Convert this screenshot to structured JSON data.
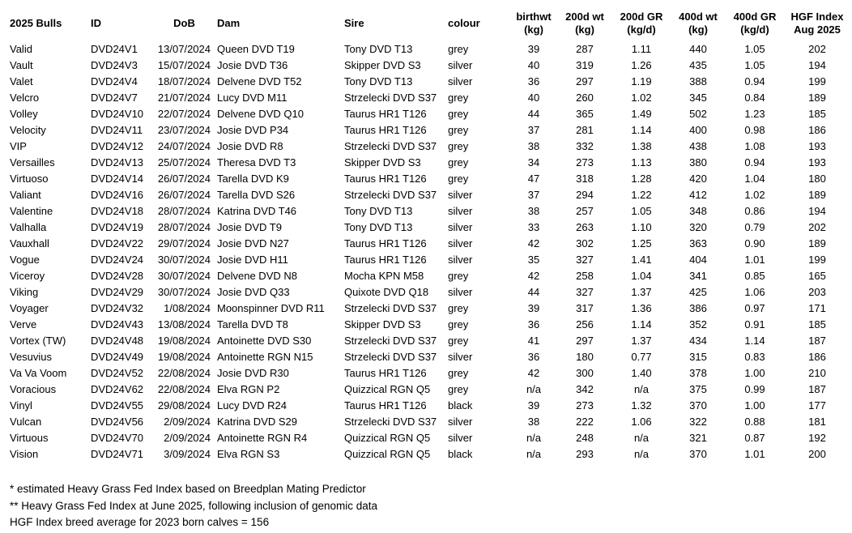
{
  "table": {
    "columns": [
      {
        "key": "name",
        "label": "2025 Bulls",
        "sub": ""
      },
      {
        "key": "id",
        "label": "ID",
        "sub": ""
      },
      {
        "key": "dob",
        "label": "DoB",
        "sub": ""
      },
      {
        "key": "dam",
        "label": "Dam",
        "sub": ""
      },
      {
        "key": "sire",
        "label": "Sire",
        "sub": ""
      },
      {
        "key": "colour",
        "label": "colour",
        "sub": ""
      },
      {
        "key": "birthwt",
        "label": "birthwt",
        "sub": "(kg)"
      },
      {
        "key": "wt200",
        "label": "200d wt",
        "sub": "(kg)"
      },
      {
        "key": "gr200",
        "label": "200d GR",
        "sub": "(kg/d)"
      },
      {
        "key": "wt400",
        "label": "400d wt",
        "sub": "(kg)"
      },
      {
        "key": "gr400",
        "label": "400d GR",
        "sub": "(kg/d)"
      },
      {
        "key": "hgf",
        "label": "HGF Index",
        "sub": "Aug 2025"
      }
    ],
    "rows": [
      [
        "Valid",
        "DVD24V1",
        "13/07/2024",
        "Queen DVD T19",
        "Tony DVD T13",
        "grey",
        "39",
        "287",
        "1.11",
        "440",
        "1.05",
        "202"
      ],
      [
        "Vault",
        "DVD24V3",
        "15/07/2024",
        "Josie DVD T36",
        "Skipper DVD S3",
        "silver",
        "40",
        "319",
        "1.26",
        "435",
        "1.05",
        "194"
      ],
      [
        "Valet",
        "DVD24V4",
        "18/07/2024",
        "Delvene DVD T52",
        "Tony DVD T13",
        "silver",
        "36",
        "297",
        "1.19",
        "388",
        "0.94",
        "199"
      ],
      [
        "Velcro",
        "DVD24V7",
        "21/07/2024",
        "Lucy DVD M11",
        "Strzelecki DVD S37",
        "grey",
        "40",
        "260",
        "1.02",
        "345",
        "0.84",
        "189"
      ],
      [
        "Volley",
        "DVD24V10",
        "22/07/2024",
        "Delvene DVD Q10",
        "Taurus HR1 T126",
        "grey",
        "44",
        "365",
        "1.49",
        "502",
        "1.23",
        "185"
      ],
      [
        "Velocity",
        "DVD24V11",
        "23/07/2024",
        "Josie DVD P34",
        "Taurus HR1 T126",
        "grey",
        "37",
        "281",
        "1.14",
        "400",
        "0.98",
        "186"
      ],
      [
        "VIP",
        "DVD24V12",
        "24/07/2024",
        "Josie DVD R8",
        "Strzelecki DVD S37",
        "grey",
        "38",
        "332",
        "1.38",
        "438",
        "1.08",
        "193"
      ],
      [
        "Versailles",
        "DVD24V13",
        "25/07/2024",
        "Theresa DVD T3",
        "Skipper DVD S3",
        "grey",
        "34",
        "273",
        "1.13",
        "380",
        "0.94",
        "193"
      ],
      [
        "Virtuoso",
        "DVD24V14",
        "26/07/2024",
        "Tarella DVD K9",
        "Taurus HR1 T126",
        "grey",
        "47",
        "318",
        "1.28",
        "420",
        "1.04",
        "180"
      ],
      [
        "Valiant",
        "DVD24V16",
        "26/07/2024",
        "Tarella DVD S26",
        "Strzelecki DVD S37",
        "silver",
        "37",
        "294",
        "1.22",
        "412",
        "1.02",
        "189"
      ],
      [
        "Valentine",
        "DVD24V18",
        "28/07/2024",
        "Katrina DVD T46",
        "Tony DVD T13",
        "silver",
        "38",
        "257",
        "1.05",
        "348",
        "0.86",
        "194"
      ],
      [
        "Valhalla",
        "DVD24V19",
        "28/07/2024",
        "Josie DVD T9",
        "Tony DVD T13",
        "silver",
        "33",
        "263",
        "1.10",
        "320",
        "0.79",
        "202"
      ],
      [
        "Vauxhall",
        "DVD24V22",
        "29/07/2024",
        "Josie DVD N27",
        "Taurus HR1 T126",
        "silver",
        "42",
        "302",
        "1.25",
        "363",
        "0.90",
        "189"
      ],
      [
        "Vogue",
        "DVD24V24",
        "30/07/2024",
        "Josie DVD H11",
        "Taurus HR1 T126",
        "silver",
        "35",
        "327",
        "1.41",
        "404",
        "1.01",
        "199"
      ],
      [
        "Viceroy",
        "DVD24V28",
        "30/07/2024",
        "Delvene DVD N8",
        "Mocha KPN M58",
        "grey",
        "42",
        "258",
        "1.04",
        "341",
        "0.85",
        "165"
      ],
      [
        "Viking",
        "DVD24V29",
        "30/07/2024",
        "Josie DVD Q33",
        "Quixote DVD Q18",
        "silver",
        "44",
        "327",
        "1.37",
        "425",
        "1.06",
        "203"
      ],
      [
        "Voyager",
        "DVD24V32",
        "1/08/2024",
        "Moonspinner DVD R11",
        "Strzelecki DVD S37",
        "grey",
        "39",
        "317",
        "1.36",
        "386",
        "0.97",
        "171"
      ],
      [
        "Verve",
        "DVD24V43",
        "13/08/2024",
        "Tarella DVD T8",
        "Skipper DVD S3",
        "grey",
        "36",
        "256",
        "1.14",
        "352",
        "0.91",
        "185"
      ],
      [
        "Vortex (TW)",
        "DVD24V48",
        "19/08/2024",
        "Antoinette DVD S30",
        "Strzelecki DVD S37",
        "grey",
        "41",
        "297",
        "1.37",
        "434",
        "1.14",
        "187"
      ],
      [
        "Vesuvius",
        "DVD24V49",
        "19/08/2024",
        "Antoinette RGN N15",
        "Strzelecki DVD S37",
        "silver",
        "36",
        "180",
        "0.77",
        "315",
        "0.83",
        "186"
      ],
      [
        "Va Va Voom",
        "DVD24V52",
        "22/08/2024",
        "Josie DVD R30",
        "Taurus HR1 T126",
        "grey",
        "42",
        "300",
        "1.40",
        "378",
        "1.00",
        "210"
      ],
      [
        "Voracious",
        "DVD24V62",
        "22/08/2024",
        "Elva RGN P2",
        "Quizzical RGN Q5",
        "grey",
        "n/a",
        "342",
        "n/a",
        "375",
        "0.99",
        "187"
      ],
      [
        "Vinyl",
        "DVD24V55",
        "29/08/2024",
        "Lucy DVD R24",
        "Taurus HR1 T126",
        "black",
        "39",
        "273",
        "1.32",
        "370",
        "1.00",
        "177"
      ],
      [
        "Vulcan",
        "DVD24V56",
        "2/09/2024",
        "Katrina DVD S29",
        "Strzelecki DVD S37",
        "silver",
        "38",
        "222",
        "1.06",
        "322",
        "0.88",
        "181"
      ],
      [
        "Virtuous",
        "DVD24V70",
        "2/09/2024",
        "Antoinette RGN R4",
        "Quizzical RGN Q5",
        "silver",
        "n/a",
        "248",
        "n/a",
        "321",
        "0.87",
        "192"
      ],
      [
        "Vision",
        "DVD24V71",
        "3/09/2024",
        "Elva RGN S3",
        "Quizzical RGN Q5",
        "black",
        "n/a",
        "293",
        "n/a",
        "370",
        "1.01",
        "200"
      ]
    ]
  },
  "footnotes": [
    "* estimated Heavy Grass Fed Index based on Breedplan Mating Predictor",
    "** Heavy Grass Fed Index at June 2025, following inclusion of genomic data",
    "HGF Index breed average for 2023 born calves = 156"
  ],
  "colors": {
    "text": "#000000",
    "background": "#ffffff"
  }
}
